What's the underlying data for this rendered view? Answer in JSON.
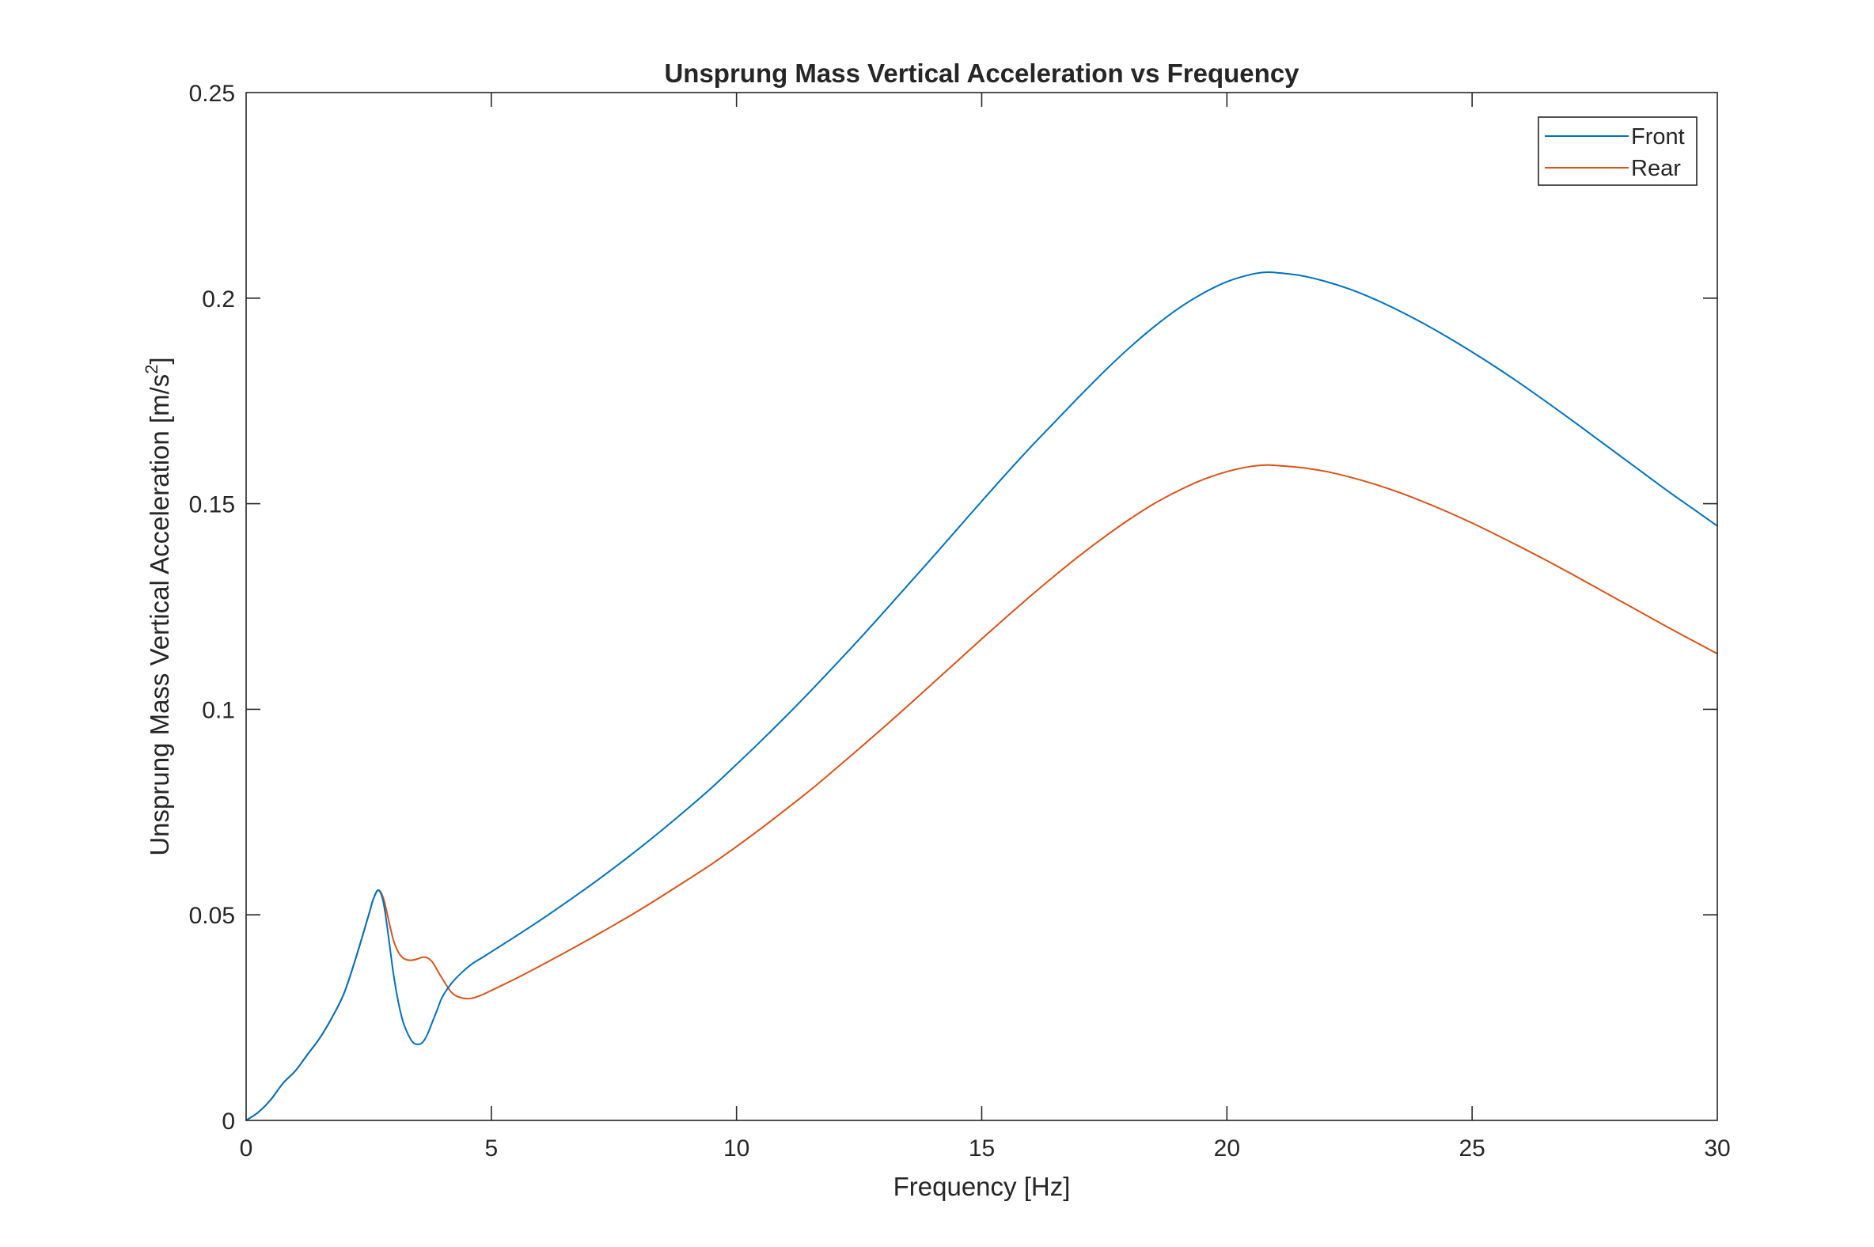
{
  "chart_data": {
    "type": "line",
    "title": "Unsprung Mass Vertical Acceleration vs Frequency",
    "xlabel": "Frequency [Hz]",
    "ylabel": "Unsprung Mass Vertical Acceleration [m/s",
    "ylabel_superscript": "2",
    "ylabel_suffix": "]",
    "xlim": [
      0,
      30
    ],
    "ylim": [
      0,
      0.25
    ],
    "xticks": [
      0,
      5,
      10,
      15,
      20,
      25,
      30
    ],
    "xtick_labels": [
      "0",
      "5",
      "10",
      "15",
      "20",
      "25",
      "30"
    ],
    "yticks": [
      0,
      0.05,
      0.1,
      0.15,
      0.2,
      0.25
    ],
    "ytick_labels": [
      "0",
      "0.05",
      "0.1",
      "0.15",
      "0.2",
      "0.25"
    ],
    "grid": false,
    "legend_position": "top-right",
    "series": [
      {
        "name": "Front",
        "color": "#0072BD",
        "x": [
          0,
          0.25,
          0.5,
          0.75,
          1.0,
          1.25,
          1.5,
          1.75,
          2.0,
          2.25,
          2.5,
          2.6,
          2.7,
          2.8,
          2.9,
          3.0,
          3.1,
          3.2,
          3.3,
          3.4,
          3.5,
          3.6,
          3.7,
          3.8,
          3.9,
          4.0,
          4.2,
          4.4,
          4.6,
          4.8,
          5.0,
          5.5,
          6,
          6.5,
          7,
          7.5,
          8,
          8.5,
          9,
          9.5,
          10,
          10.5,
          11,
          11.5,
          12,
          12.5,
          13,
          13.5,
          14,
          14.5,
          15,
          15.5,
          16,
          16.5,
          17,
          17.5,
          18,
          18.5,
          19,
          19.5,
          20,
          20.5,
          20.8,
          21,
          21.5,
          22,
          22.5,
          23,
          23.5,
          24,
          24.5,
          25,
          25.5,
          26,
          26.5,
          27,
          27.5,
          28,
          28.5,
          29,
          29.5,
          30
        ],
        "y": [
          0,
          0.002,
          0.005,
          0.009,
          0.012,
          0.016,
          0.02,
          0.025,
          0.031,
          0.04,
          0.05,
          0.054,
          0.056,
          0.053,
          0.045,
          0.036,
          0.029,
          0.024,
          0.021,
          0.019,
          0.0185,
          0.019,
          0.021,
          0.024,
          0.027,
          0.03,
          0.0335,
          0.036,
          0.038,
          0.0395,
          0.041,
          0.0448,
          0.0487,
          0.0528,
          0.057,
          0.0614,
          0.066,
          0.0708,
          0.0758,
          0.081,
          0.0866,
          0.0923,
          0.0982,
          0.1043,
          0.1106,
          0.117,
          0.1236,
          0.1303,
          0.137,
          0.1438,
          0.1506,
          0.1573,
          0.1638,
          0.17,
          0.1762,
          0.1822,
          0.1878,
          0.1929,
          0.1974,
          0.2011,
          0.204,
          0.2058,
          0.2063,
          0.2062,
          0.2055,
          0.2041,
          0.2022,
          0.1998,
          0.197,
          0.1939,
          0.1905,
          0.1869,
          0.1831,
          0.1791,
          0.1749,
          0.1706,
          0.1662,
          0.1618,
          0.1574,
          0.153,
          0.1488,
          0.1446
        ]
      },
      {
        "name": "Rear",
        "color": "#D95319",
        "x": [
          0,
          0.25,
          0.5,
          0.75,
          1.0,
          1.25,
          1.5,
          1.75,
          2.0,
          2.25,
          2.5,
          2.6,
          2.7,
          2.8,
          2.9,
          3.0,
          3.1,
          3.2,
          3.3,
          3.4,
          3.5,
          3.6,
          3.7,
          3.8,
          3.9,
          4.0,
          4.2,
          4.4,
          4.6,
          4.8,
          5.0,
          5.5,
          6,
          6.5,
          7,
          7.5,
          8,
          8.5,
          9,
          9.5,
          10,
          10.5,
          11,
          11.5,
          12,
          12.5,
          13,
          13.5,
          14,
          14.5,
          15,
          15.5,
          16,
          16.5,
          17,
          17.5,
          18,
          18.5,
          19,
          19.5,
          20,
          20.5,
          20.8,
          21,
          21.5,
          22,
          22.5,
          23,
          23.5,
          24,
          24.5,
          25,
          25.5,
          26,
          26.5,
          27,
          27.5,
          28,
          28.5,
          29,
          29.5,
          30
        ],
        "y": [
          0,
          0.002,
          0.005,
          0.009,
          0.012,
          0.016,
          0.02,
          0.025,
          0.031,
          0.04,
          0.05,
          0.054,
          0.056,
          0.054,
          0.049,
          0.044,
          0.041,
          0.0395,
          0.039,
          0.039,
          0.0393,
          0.0397,
          0.0395,
          0.0385,
          0.0365,
          0.0345,
          0.031,
          0.0298,
          0.0297,
          0.0305,
          0.0316,
          0.0345,
          0.0376,
          0.0408,
          0.0441,
          0.0475,
          0.051,
          0.0547,
          0.0585,
          0.0624,
          0.0666,
          0.071,
          0.0756,
          0.0803,
          0.0853,
          0.0904,
          0.0956,
          0.1009,
          0.1063,
          0.1117,
          0.1171,
          0.1224,
          0.1276,
          0.1326,
          0.1374,
          0.1419,
          0.1461,
          0.1499,
          0.1531,
          0.1558,
          0.1578,
          0.1591,
          0.1594,
          0.1593,
          0.1588,
          0.1579,
          0.1565,
          0.1548,
          0.1528,
          0.1505,
          0.148,
          0.1453,
          0.1424,
          0.1394,
          0.1363,
          0.1331,
          0.1298,
          0.1265,
          0.1232,
          0.1199,
          0.1167,
          0.1135
        ]
      }
    ]
  }
}
